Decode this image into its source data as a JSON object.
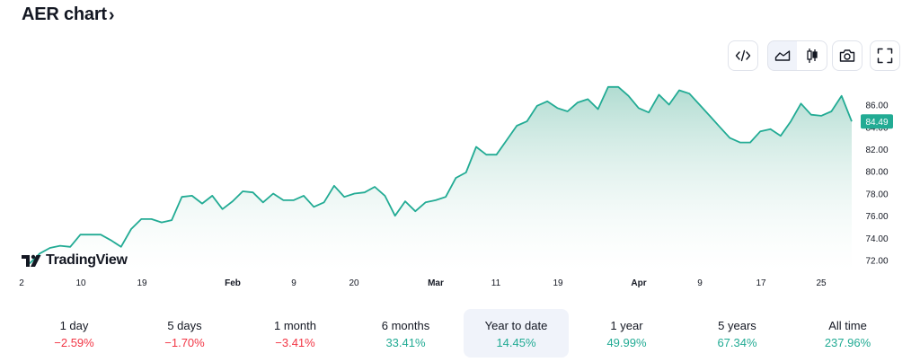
{
  "header": {
    "title": "AER chart",
    "chevron": "›"
  },
  "toolbar": {
    "buttons": [
      {
        "name": "embed-code-button",
        "icon": "code-icon"
      },
      {
        "name": "area-chart-button",
        "icon": "area-chart-icon",
        "active": true
      },
      {
        "name": "candlestick-chart-button",
        "icon": "candlestick-icon"
      },
      {
        "name": "snapshot-button",
        "icon": "camera-icon"
      },
      {
        "name": "fullscreen-button",
        "icon": "fullscreen-icon"
      }
    ]
  },
  "brand": {
    "name": "TradingView",
    "logo": "tradingview-logo"
  },
  "chart_data": {
    "type": "area",
    "x_tick_labels": [
      "2",
      "10",
      "19",
      "Feb",
      "9",
      "20",
      "Mar",
      "11",
      "19",
      "Apr",
      "9",
      "17",
      "25"
    ],
    "y_tick_labels": [
      "72.00",
      "74.00",
      "76.00",
      "78.00",
      "80.00",
      "82.00",
      "84.00",
      "86.00"
    ],
    "ylim": [
      71,
      87.5
    ],
    "last_price_label": "84.49",
    "series": [
      {
        "values": [
          71.7,
          72.6,
          73.1,
          73.3,
          73.2,
          74.3,
          74.3,
          74.3,
          73.8,
          73.2,
          74.8,
          75.7,
          75.7,
          75.4,
          75.6,
          77.7,
          77.8,
          77.1,
          77.8,
          76.6,
          77.3,
          78.2,
          78.1,
          77.2,
          78.0,
          77.4,
          77.4,
          77.8,
          76.8,
          77.2,
          78.7,
          77.7,
          78.0,
          78.1,
          78.6,
          77.8,
          76.0,
          77.3,
          76.4,
          77.2,
          77.4,
          77.7,
          79.4,
          79.9,
          82.2,
          81.5,
          81.5,
          82.8,
          84.1,
          84.5,
          85.9,
          86.3,
          85.7,
          85.4,
          86.2,
          86.5,
          85.6,
          87.6,
          87.6,
          86.8,
          85.7,
          85.3,
          86.9,
          86.0,
          87.3,
          87.0,
          86.0,
          85.0,
          84.0,
          83.0,
          82.6,
          82.6,
          83.6,
          83.8,
          83.2,
          84.5,
          86.1,
          85.1,
          85.0,
          85.4,
          86.8,
          84.49
        ]
      }
    ],
    "colors": {
      "line": "#22ab94",
      "fill_top": "#a8d8cc",
      "fill_bottom": "#ffffff",
      "label_bg": "#22ab94"
    },
    "grid": false
  },
  "periods": [
    {
      "label": "1 day",
      "value": "−2.59%",
      "trend": "neg"
    },
    {
      "label": "5 days",
      "value": "−1.70%",
      "trend": "neg"
    },
    {
      "label": "1 month",
      "value": "−3.41%",
      "trend": "neg"
    },
    {
      "label": "6 months",
      "value": "33.41%",
      "trend": "pos"
    },
    {
      "label": "Year to date",
      "value": "14.45%",
      "trend": "pos",
      "active": true
    },
    {
      "label": "1 year",
      "value": "49.99%",
      "trend": "pos"
    },
    {
      "label": "5 years",
      "value": "67.34%",
      "trend": "pos"
    },
    {
      "label": "All time",
      "value": "237.96%",
      "trend": "pos"
    }
  ]
}
